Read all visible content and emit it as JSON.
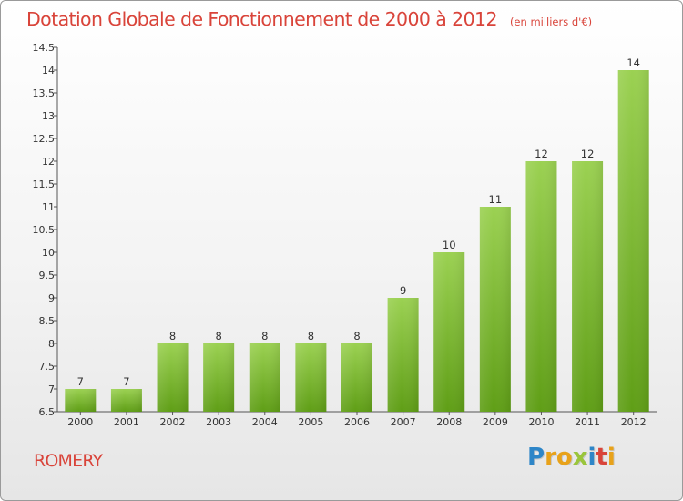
{
  "title": "Dotation Globale de Fonctionnement de 2000 à 2012",
  "unit_note": "(en milliers d'€)",
  "place_name": "ROMERY",
  "logo": {
    "letters": [
      "P",
      "r",
      "o",
      "x",
      "i",
      "t",
      "i"
    ],
    "colors": [
      "#2e86c8",
      "#e8a21a",
      "#e8a21a",
      "#9ac53b",
      "#2e86c8",
      "#d9443a",
      "#e8a21a"
    ]
  },
  "colors": {
    "accent": "#d9443a",
    "bar_top": "#9bd152",
    "bar_bottom": "#5f9e16",
    "axis": "#555555"
  },
  "chart_data": {
    "type": "bar",
    "categories": [
      "2000",
      "2001",
      "2002",
      "2003",
      "2004",
      "2005",
      "2006",
      "2007",
      "2008",
      "2009",
      "2010",
      "2011",
      "2012"
    ],
    "values": [
      7,
      7,
      8,
      8,
      8,
      8,
      8,
      9,
      10,
      11,
      12,
      12,
      14
    ],
    "data_labels": [
      "7",
      "7",
      "8",
      "8",
      "8",
      "8",
      "8",
      "9",
      "10",
      "11",
      "12",
      "12",
      "14"
    ],
    "y_ticks": [
      6.5,
      7,
      7.5,
      8,
      8.5,
      9,
      9.5,
      10,
      10.5,
      11,
      11.5,
      12,
      12.5,
      13,
      13.5,
      14,
      14.5
    ],
    "y_tick_labels": [
      "6.5",
      "7",
      "7.5",
      "8",
      "8.5",
      "9",
      "9.5",
      "10",
      "10.5",
      "11",
      "11.5",
      "12",
      "12.5",
      "13",
      "13.5",
      "14",
      "14.5"
    ],
    "ylim": [
      6.5,
      14.5
    ],
    "grid": false,
    "legend": "none"
  }
}
